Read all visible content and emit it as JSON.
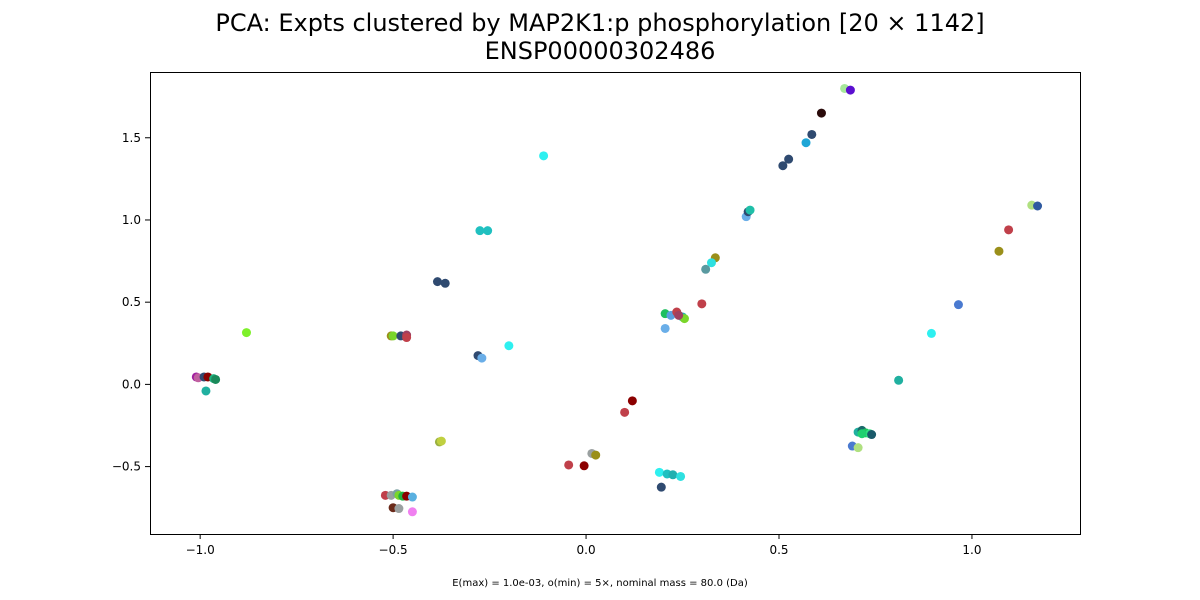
{
  "chart_data": {
    "type": "scatter",
    "title": "PCA: Expts clustered by MAP2K1:p phosphorylation [20 × 1142]",
    "subtitle": "ENSP00000302486",
    "footnote": "E(max) = 1.0e-03, o(min) = 5×, nominal mass = 80.0 (Da)",
    "xlim": [
      -1.13,
      1.28
    ],
    "ylim": [
      -0.91,
      1.9
    ],
    "xticks": [
      -1.0,
      -0.5,
      0.0,
      0.5,
      1.0
    ],
    "xtick_labels": [
      "−1.0",
      "−0.5",
      "0.0",
      "0.5",
      "1.0"
    ],
    "yticks": [
      -0.5,
      0.0,
      0.5,
      1.0,
      1.5
    ],
    "ytick_labels": [
      "−0.5",
      "0.0",
      "0.5",
      "1.0",
      "1.5"
    ],
    "grid": false,
    "points": [
      {
        "x": 0.67,
        "y": 1.8,
        "color": "#a6e89a"
      },
      {
        "x": 0.685,
        "y": 1.79,
        "color": "#5b0fd0"
      },
      {
        "x": 0.61,
        "y": 1.65,
        "color": "#2a0a0a"
      },
      {
        "x": 0.585,
        "y": 1.52,
        "color": "#2f4a70"
      },
      {
        "x": 0.57,
        "y": 1.47,
        "color": "#1fa6d6"
      },
      {
        "x": 0.525,
        "y": 1.37,
        "color": "#2f4a70"
      },
      {
        "x": 0.51,
        "y": 1.33,
        "color": "#2f4a70"
      },
      {
        "x": 0.415,
        "y": 1.02,
        "color": "#6aaee8"
      },
      {
        "x": 0.42,
        "y": 1.05,
        "color": "#2f4a70"
      },
      {
        "x": 0.425,
        "y": 1.06,
        "color": "#1fbfa8"
      },
      {
        "x": 0.335,
        "y": 0.77,
        "color": "#9a8f1a"
      },
      {
        "x": 0.325,
        "y": 0.74,
        "color": "#2ee0e0"
      },
      {
        "x": 0.31,
        "y": 0.7,
        "color": "#5a9aa0"
      },
      {
        "x": 0.3,
        "y": 0.49,
        "color": "#c0404a"
      },
      {
        "x": 0.205,
        "y": 0.43,
        "color": "#1fbf60"
      },
      {
        "x": 0.22,
        "y": 0.42,
        "color": "#5aa0e0"
      },
      {
        "x": 0.235,
        "y": 0.44,
        "color": "#c0404a"
      },
      {
        "x": 0.25,
        "y": 0.41,
        "color": "#20b0b0"
      },
      {
        "x": 0.255,
        "y": 0.4,
        "color": "#7ad62a"
      },
      {
        "x": 0.24,
        "y": 0.42,
        "color": "#a04060"
      },
      {
        "x": 0.205,
        "y": 0.34,
        "color": "#6aaee8"
      },
      {
        "x": -0.11,
        "y": 1.39,
        "color": "#2ef0f0"
      },
      {
        "x": -0.275,
        "y": 0.935,
        "color": "#20c0c0"
      },
      {
        "x": -0.255,
        "y": 0.935,
        "color": "#20c0c0"
      },
      {
        "x": -0.385,
        "y": 0.625,
        "color": "#2f4a70"
      },
      {
        "x": -0.365,
        "y": 0.615,
        "color": "#2f4a70"
      },
      {
        "x": -0.28,
        "y": 0.175,
        "color": "#2f4a70"
      },
      {
        "x": -0.27,
        "y": 0.16,
        "color": "#6aaee8"
      },
      {
        "x": -0.2,
        "y": 0.235,
        "color": "#2ef0f0"
      },
      {
        "x": -0.505,
        "y": 0.295,
        "color": "#9a8f1a"
      },
      {
        "x": -0.5,
        "y": 0.295,
        "color": "#7ad62a"
      },
      {
        "x": -0.48,
        "y": 0.295,
        "color": "#2f4a70"
      },
      {
        "x": -0.465,
        "y": 0.3,
        "color": "#a04060"
      },
      {
        "x": -0.465,
        "y": 0.285,
        "color": "#c0404a"
      },
      {
        "x": -0.88,
        "y": 0.315,
        "color": "#7ef02a"
      },
      {
        "x": -1.01,
        "y": 0.045,
        "color": "#a020a0"
      },
      {
        "x": -1.005,
        "y": 0.04,
        "color": "#c060a0"
      },
      {
        "x": -0.99,
        "y": 0.045,
        "color": "#2f4a70"
      },
      {
        "x": -0.98,
        "y": 0.045,
        "color": "#8b0000"
      },
      {
        "x": -0.965,
        "y": 0.035,
        "color": "#20b080"
      },
      {
        "x": -0.96,
        "y": 0.03,
        "color": "#1a8a5a"
      },
      {
        "x": -0.985,
        "y": -0.04,
        "color": "#20b0a0"
      },
      {
        "x": -0.38,
        "y": -0.35,
        "color": "#9ab040"
      },
      {
        "x": -0.375,
        "y": -0.345,
        "color": "#c0d040"
      },
      {
        "x": -0.52,
        "y": -0.675,
        "color": "#c0404a"
      },
      {
        "x": -0.505,
        "y": -0.675,
        "color": "#9aa0a0"
      },
      {
        "x": -0.49,
        "y": -0.665,
        "color": "#7aa0a0"
      },
      {
        "x": -0.485,
        "y": -0.675,
        "color": "#7ad62a"
      },
      {
        "x": -0.475,
        "y": -0.68,
        "color": "#20b040"
      },
      {
        "x": -0.465,
        "y": -0.68,
        "color": "#8b0000"
      },
      {
        "x": -0.45,
        "y": -0.685,
        "color": "#5ab0e0"
      },
      {
        "x": -0.5,
        "y": -0.75,
        "color": "#6a2a1a"
      },
      {
        "x": -0.485,
        "y": -0.755,
        "color": "#9aa0a0"
      },
      {
        "x": -0.45,
        "y": -0.775,
        "color": "#f080f0"
      },
      {
        "x": 0.12,
        "y": -0.1,
        "color": "#8b0000"
      },
      {
        "x": 0.1,
        "y": -0.17,
        "color": "#c0404a"
      },
      {
        "x": -0.045,
        "y": -0.49,
        "color": "#c0404a"
      },
      {
        "x": -0.005,
        "y": -0.495,
        "color": "#8b0000"
      },
      {
        "x": 0.015,
        "y": -0.42,
        "color": "#9aa0a0"
      },
      {
        "x": 0.025,
        "y": -0.43,
        "color": "#9a8f1a"
      },
      {
        "x": 0.19,
        "y": -0.535,
        "color": "#2ef0f0"
      },
      {
        "x": 0.21,
        "y": -0.545,
        "color": "#20c0c0"
      },
      {
        "x": 0.225,
        "y": -0.55,
        "color": "#20b0b0"
      },
      {
        "x": 0.245,
        "y": -0.56,
        "color": "#2ee0e0"
      },
      {
        "x": 0.195,
        "y": -0.625,
        "color": "#2f4a70"
      },
      {
        "x": 0.69,
        "y": -0.375,
        "color": "#4a7ad0"
      },
      {
        "x": 0.705,
        "y": -0.385,
        "color": "#b0e080"
      },
      {
        "x": 0.705,
        "y": -0.29,
        "color": "#20b0a0"
      },
      {
        "x": 0.715,
        "y": -0.28,
        "color": "#1a6a6a"
      },
      {
        "x": 0.725,
        "y": -0.295,
        "color": "#20c060"
      },
      {
        "x": 0.735,
        "y": -0.3,
        "color": "#2ee080"
      },
      {
        "x": 0.74,
        "y": -0.305,
        "color": "#1a5a6a"
      },
      {
        "x": 0.715,
        "y": -0.3,
        "color": "#20d070"
      },
      {
        "x": 0.81,
        "y": 0.025,
        "color": "#20b0a0"
      },
      {
        "x": 0.895,
        "y": 0.31,
        "color": "#2ef0f0"
      },
      {
        "x": 0.965,
        "y": 0.485,
        "color": "#4a7ad0"
      },
      {
        "x": 1.07,
        "y": 0.81,
        "color": "#9a8f1a"
      },
      {
        "x": 1.095,
        "y": 0.94,
        "color": "#c0404a"
      },
      {
        "x": 1.155,
        "y": 1.09,
        "color": "#b0e080"
      },
      {
        "x": 1.17,
        "y": 1.085,
        "color": "#2f5aa0"
      }
    ]
  }
}
